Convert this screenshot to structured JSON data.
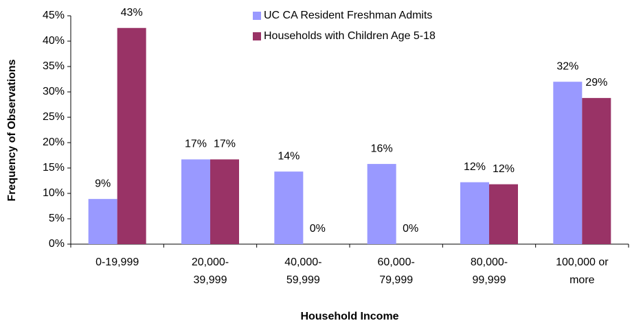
{
  "chart_data": {
    "type": "bar",
    "x_label": "Household Income",
    "y_label": "Frequency of Observations",
    "categories": [
      [
        "0-19,999"
      ],
      [
        "20,000-",
        "39,999"
      ],
      [
        "40,000-",
        "59,999"
      ],
      [
        "60,000-",
        "79,999"
      ],
      [
        "80,000-",
        "99,999"
      ],
      [
        "100,000 or",
        "more"
      ]
    ],
    "series": [
      {
        "name": "UC CA Resident Freshman Admits",
        "color": "#9999ff",
        "values": [
          8.9,
          16.7,
          14.3,
          15.8,
          12.2,
          32.0
        ],
        "value_labels": [
          "9%",
          "17%",
          "14%",
          "16%",
          "12%",
          "32%"
        ]
      },
      {
        "name": "Households with Children Age 5-18",
        "color": "#993366",
        "values": [
          42.6,
          16.7,
          0,
          0,
          11.8,
          28.8
        ],
        "value_labels": [
          "43%",
          "17%",
          "0%",
          "0%",
          "12%",
          "29%"
        ]
      }
    ],
    "ylim": [
      0,
      45
    ],
    "yticks": [
      {
        "value": 0,
        "label": "0%"
      },
      {
        "value": 5,
        "label": "5%"
      },
      {
        "value": 10,
        "label": "10%"
      },
      {
        "value": 15,
        "label": "15%"
      },
      {
        "value": 20,
        "label": "20%"
      },
      {
        "value": 25,
        "label": "25%"
      },
      {
        "value": 30,
        "label": "30%"
      },
      {
        "value": 35,
        "label": "35%"
      },
      {
        "value": 40,
        "label": "40%"
      },
      {
        "value": 45,
        "label": "45%"
      }
    ],
    "grid": false,
    "legend": "top"
  }
}
